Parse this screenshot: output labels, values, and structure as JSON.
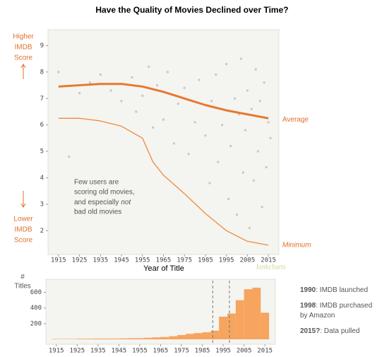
{
  "chart_data": [
    {
      "type": "line",
      "title": "Have the Quality of Movies Declined over Time?",
      "xlabel": "Year of Title",
      "higher_label": [
        "Higher",
        "IMDB",
        "Score"
      ],
      "lower_label": [
        "Lower",
        "IMDB",
        "Score"
      ],
      "annotation": [
        "Few users are",
        "scoring old movies,",
        "and especially",
        "not",
        "bad old movies"
      ],
      "watermark": "Junkcharts",
      "xlim": [
        1910,
        2020
      ],
      "xticks": [
        1915,
        1925,
        1935,
        1945,
        1955,
        1965,
        1975,
        1985,
        1995,
        2005,
        2015
      ],
      "ylim": [
        1.1,
        9.6
      ],
      "yticks": [
        2,
        3,
        4,
        5,
        6,
        7,
        8,
        9
      ],
      "scatter": {
        "color": "#c8c8c8",
        "x": [
          1915,
          1920,
          1925,
          1930,
          1935,
          1940,
          1945,
          1950,
          1952,
          1955,
          1958,
          1960,
          1962,
          1965,
          1967,
          1970,
          1972,
          1975,
          1977,
          1980,
          1982,
          1985,
          1987,
          1988,
          1990,
          1991,
          1993,
          1995,
          1996,
          1997,
          1999,
          2000,
          2001,
          2002,
          2003,
          2004,
          2005,
          2006,
          2007,
          2008,
          2009,
          2010,
          2011,
          2012,
          2013,
          2014,
          2015,
          2016
        ],
        "y": [
          8,
          4.8,
          7.2,
          7.6,
          7.9,
          7.3,
          6.9,
          7.8,
          6.5,
          7.1,
          8.2,
          5.9,
          7.5,
          6.2,
          8.0,
          5.3,
          6.8,
          7.4,
          4.9,
          6.1,
          7.7,
          5.6,
          3.8,
          6.9,
          7.9,
          4.6,
          6.0,
          8.3,
          3.2,
          5.2,
          7.0,
          2.6,
          6.4,
          8.5,
          4.2,
          5.8,
          7.3,
          2.1,
          6.6,
          3.9,
          8.1,
          5.0,
          6.9,
          2.9,
          7.6,
          4.4,
          6.1,
          5.5
        ]
      },
      "series": [
        {
          "name": "Average",
          "color": "#e8772e",
          "x": [
            1915,
            1925,
            1935,
            1945,
            1955,
            1965,
            1975,
            1985,
            1995,
            2005,
            2015
          ],
          "values": [
            7.45,
            7.5,
            7.55,
            7.55,
            7.45,
            7.25,
            7.0,
            6.75,
            6.55,
            6.4,
            6.25
          ]
        },
        {
          "name": "Minimum",
          "color": "#ef8a3c",
          "x": [
            1915,
            1925,
            1935,
            1945,
            1955,
            1960,
            1965,
            1975,
            1985,
            1995,
            2005,
            2015
          ],
          "values": [
            6.25,
            6.25,
            6.15,
            5.95,
            5.5,
            4.6,
            4.1,
            3.4,
            2.65,
            2.0,
            1.6,
            1.45
          ]
        }
      ]
    },
    {
      "type": "histogram",
      "ylabel": [
        "#",
        "Titles"
      ],
      "color": "#f7a45e",
      "bins": [
        1913,
        1917,
        1921,
        1925,
        1929,
        1933,
        1937,
        1941,
        1945,
        1949,
        1953,
        1957,
        1961,
        1965,
        1969,
        1973,
        1977,
        1981,
        1985,
        1989,
        1993,
        1997,
        2001,
        2005,
        2009,
        2013,
        2017
      ],
      "values": [
        5,
        5,
        5,
        8,
        8,
        10,
        10,
        10,
        12,
        15,
        15,
        20,
        25,
        30,
        40,
        55,
        70,
        80,
        90,
        110,
        290,
        330,
        500,
        640,
        660,
        340
      ],
      "xlim": [
        1910,
        2020
      ],
      "xticks": [
        1915,
        1925,
        1935,
        1945,
        1955,
        1965,
        1975,
        1985,
        1995,
        2005,
        2015
      ],
      "ylim": [
        0,
        750
      ],
      "yticks": [
        200,
        400,
        600
      ],
      "vlines": [
        1990,
        1998
      ],
      "notes": [
        {
          "bold": "1990",
          "lines": [
            ": IMDB launched"
          ]
        },
        {
          "bold": "1998",
          "lines": [
            ": IMDB purchased",
            "by Amazon"
          ]
        },
        {
          "bold": "2015?",
          "lines": [
            ": Data pulled"
          ]
        }
      ]
    }
  ]
}
